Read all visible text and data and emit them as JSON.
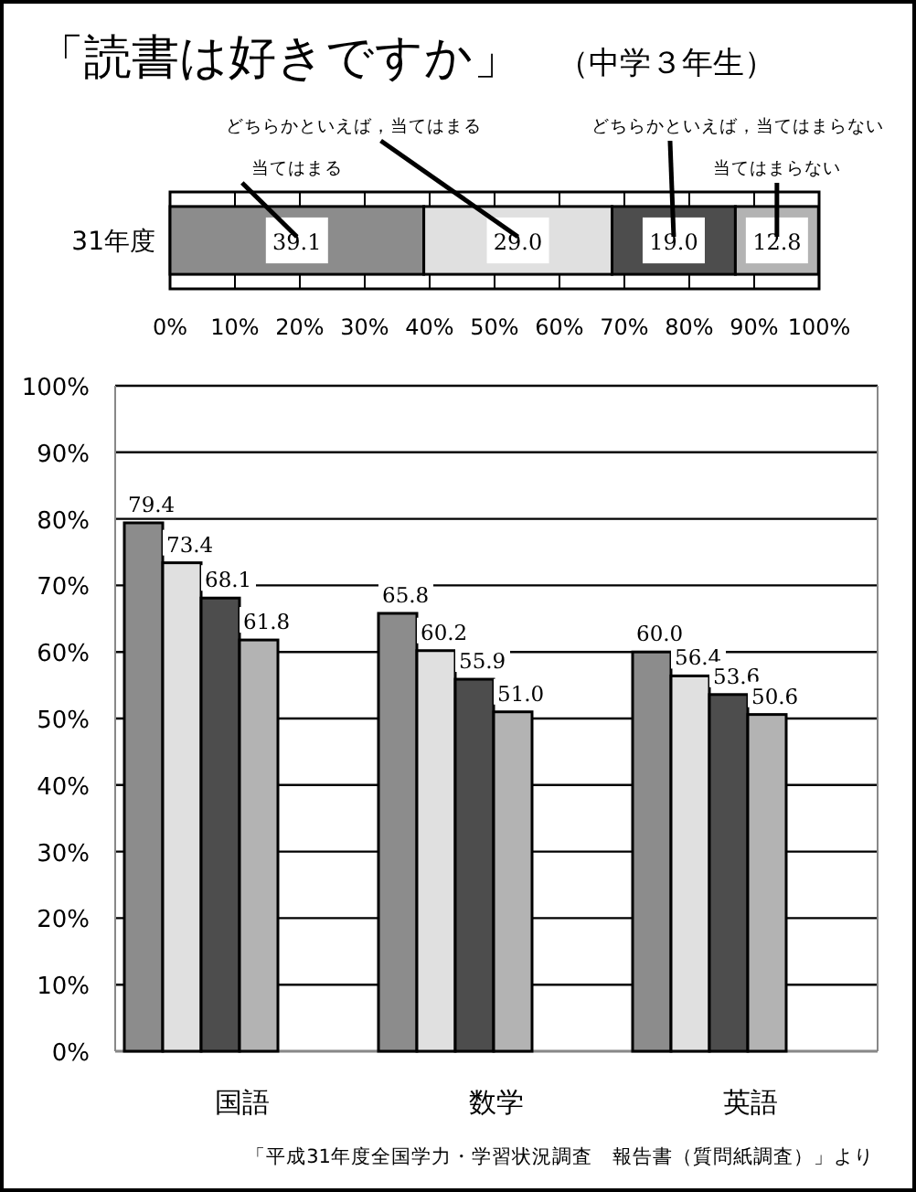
{
  "chart_data": [
    {
      "type": "bar",
      "title": "「読書は好きですか」",
      "subtitle": "（中学３年生）",
      "orientation": "horizontal",
      "stacked": true,
      "categories": [
        "31年度"
      ],
      "xlim": [
        0,
        100
      ],
      "xticks": [
        {
          "value": 0,
          "label": "0%"
        },
        {
          "value": 10,
          "label": "10%"
        },
        {
          "value": 20,
          "label": "20%"
        },
        {
          "value": 30,
          "label": "30%"
        },
        {
          "value": 40,
          "label": "40%"
        },
        {
          "value": 50,
          "label": "50%"
        },
        {
          "value": 60,
          "label": "60%"
        },
        {
          "value": 70,
          "label": "70%"
        },
        {
          "value": 80,
          "label": "80%"
        },
        {
          "value": 90,
          "label": "90%"
        },
        {
          "value": 100,
          "label": "100%"
        }
      ],
      "grid": "x",
      "series": [
        {
          "name": "当てはまる",
          "color": "#8c8c8c",
          "values": [
            39.1
          ],
          "value_labels": [
            "39.1"
          ]
        },
        {
          "name": "どちらかといえば，当てはまる",
          "color": "#e0e0e0",
          "values": [
            29.0
          ],
          "value_labels": [
            "29.0"
          ]
        },
        {
          "name": "どちらかといえば，当てはまらない",
          "color": "#4d4d4d",
          "values": [
            19.0
          ],
          "value_labels": [
            "19.0"
          ]
        },
        {
          "name": "当てはまらない",
          "color": "#b3b3b3",
          "values": [
            12.8
          ],
          "value_labels": [
            "12.8"
          ]
        }
      ]
    },
    {
      "type": "bar",
      "categories": [
        "国語",
        "数学",
        "英語"
      ],
      "ylim": [
        0,
        100
      ],
      "yticks": [
        {
          "value": 0,
          "label": "0%"
        },
        {
          "value": 10,
          "label": "10%"
        },
        {
          "value": 20,
          "label": "20%"
        },
        {
          "value": 30,
          "label": "30%"
        },
        {
          "value": 40,
          "label": "40%"
        },
        {
          "value": 50,
          "label": "50%"
        },
        {
          "value": 60,
          "label": "60%"
        },
        {
          "value": 70,
          "label": "70%"
        },
        {
          "value": 80,
          "label": "80%"
        },
        {
          "value": 90,
          "label": "90%"
        },
        {
          "value": 100,
          "label": "100%"
        }
      ],
      "grid": "y",
      "annotations": [
        "「平成31年度全国学力・学習状況調査　報告書（質問紙調査）」より"
      ],
      "series": [
        {
          "color": "#8c8c8c",
          "values": [
            79.4,
            65.8,
            60.0
          ],
          "value_labels": [
            "79.4",
            "65.8",
            "60.0"
          ]
        },
        {
          "color": "#e0e0e0",
          "values": [
            73.4,
            60.2,
            56.4
          ],
          "value_labels": [
            "73.4",
            "60.2",
            "56.4"
          ]
        },
        {
          "color": "#4d4d4d",
          "values": [
            68.1,
            55.9,
            53.6
          ],
          "value_labels": [
            "68.1",
            "55.9",
            "53.6"
          ]
        },
        {
          "color": "#b3b3b3",
          "values": [
            61.8,
            51.0,
            50.6
          ],
          "value_labels": [
            "61.8",
            "51.0",
            "50.6"
          ]
        }
      ]
    }
  ]
}
